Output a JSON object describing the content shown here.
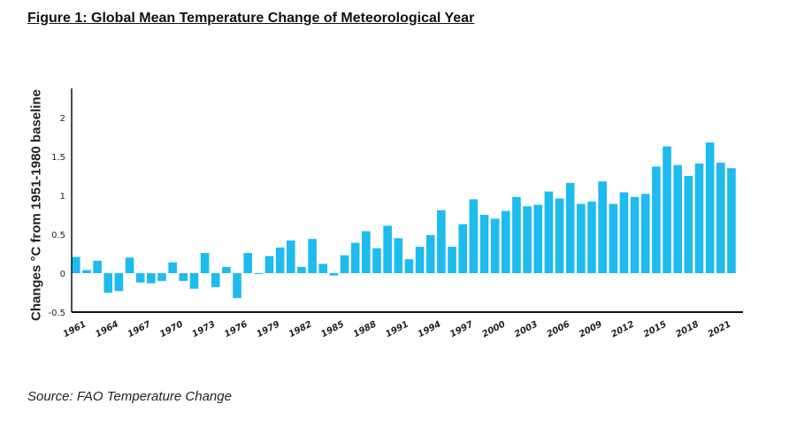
{
  "title": "Figure 1: Global Mean Temperature Change of Meteorological Year",
  "source": "Source: FAO Temperature Change",
  "colors": {
    "bar": "#1EBBEE",
    "axis": "#111111"
  },
  "chart_data": {
    "type": "bar",
    "title": "",
    "xlabel": "",
    "ylabel": "Changes °C from 1951-1980 baseline",
    "ylim": [
      -0.5,
      2.4
    ],
    "yticks": [
      "2",
      "1.5",
      "1",
      "0.5",
      "0",
      "-0.5"
    ],
    "ytick_values": [
      2,
      1.5,
      1,
      0.5,
      0,
      -0.5
    ],
    "x_tick_labels": [
      "1961",
      "1964",
      "1967",
      "1970",
      "1973",
      "1976",
      "1979",
      "1982",
      "1985",
      "1988",
      "1991",
      "1994",
      "1997",
      "2000",
      "2003",
      "2006",
      "2009",
      "2012",
      "2015",
      "2018",
      "2021"
    ],
    "categories": [
      1961,
      1962,
      1963,
      1964,
      1965,
      1966,
      1967,
      1968,
      1969,
      1970,
      1971,
      1972,
      1973,
      1974,
      1975,
      1976,
      1977,
      1978,
      1979,
      1980,
      1981,
      1982,
      1983,
      1984,
      1985,
      1986,
      1987,
      1988,
      1989,
      1990,
      1991,
      1992,
      1993,
      1994,
      1995,
      1996,
      1997,
      1998,
      1999,
      2000,
      2001,
      2002,
      2003,
      2004,
      2005,
      2006,
      2007,
      2008,
      2009,
      2010,
      2011,
      2012,
      2013,
      2014,
      2015,
      2016,
      2017,
      2018,
      2019,
      2020,
      2021,
      2022
    ],
    "values": [
      0.21,
      0.04,
      0.16,
      -0.25,
      -0.23,
      0.2,
      -0.12,
      -0.13,
      -0.1,
      0.14,
      -0.1,
      -0.2,
      0.26,
      -0.18,
      0.08,
      -0.32,
      0.26,
      -0.01,
      0.22,
      0.33,
      0.42,
      0.08,
      0.44,
      0.12,
      -0.03,
      0.23,
      0.39,
      0.54,
      0.32,
      0.61,
      0.45,
      0.18,
      0.34,
      0.49,
      0.81,
      0.34,
      0.63,
      0.95,
      0.75,
      0.7,
      0.8,
      0.98,
      0.86,
      0.88,
      1.05,
      0.96,
      1.16,
      0.89,
      0.92,
      1.18,
      0.89,
      1.04,
      0.98,
      1.02,
      1.37,
      1.63,
      1.39,
      1.25,
      1.41,
      1.68,
      1.42,
      1.35
    ],
    "grid": false,
    "legend": "none"
  }
}
